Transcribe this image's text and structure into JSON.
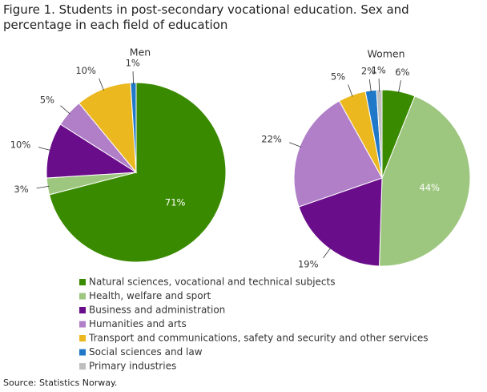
{
  "title": "Figure 1. Students in post-secondary vocational education. Sex and percentage in each field of education",
  "source": "Source: Statistics Norway.",
  "legend": {
    "labels": [
      "Natural sciences, vocational and technical subjects",
      "Health, welfare and sport",
      "Business and administration",
      "Humanities and arts",
      "Transport and communications, safety and security and other services",
      "Social sciences and law",
      "Primary industries"
    ],
    "colors": [
      "#3a8a00",
      "#9dc77f",
      "#6a0d8a",
      "#b07fc8",
      "#ecb820",
      "#1f78c8",
      "#bfbfbf"
    ]
  },
  "chart_data": [
    {
      "type": "pie",
      "title": "Men",
      "values": [
        71,
        3,
        10,
        5,
        10,
        1,
        0
      ],
      "value_labels": [
        "71%",
        "3%",
        "10%",
        "5%",
        "10%",
        "1%",
        null
      ]
    },
    {
      "type": "pie",
      "title": "Women",
      "values": [
        6,
        44,
        19,
        22,
        5,
        2,
        1
      ],
      "value_labels": [
        "6%",
        "44%",
        "19%",
        "22%",
        "5%",
        "2%",
        "1%"
      ]
    }
  ]
}
